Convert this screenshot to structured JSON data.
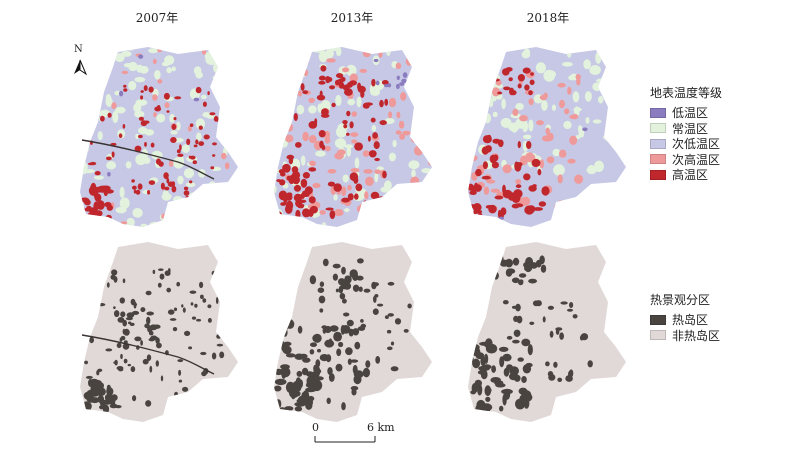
{
  "years": [
    "2007年",
    "2013年",
    "2018年"
  ],
  "north": {
    "label": "N"
  },
  "scale": {
    "start": "0",
    "end": "6 km"
  },
  "legend_temperature": {
    "title": "地表温度等级",
    "items": [
      {
        "label": "低温区",
        "color": "#8b7bbf"
      },
      {
        "label": "常温区",
        "color": "#e3f2dc"
      },
      {
        "label": "次低温区",
        "color": "#c6c8e6"
      },
      {
        "label": "次高温区",
        "color": "#ef9a9a"
      },
      {
        "label": "高温区",
        "color": "#c0272d"
      }
    ]
  },
  "legend_heat": {
    "title": "热景观分区",
    "items": [
      {
        "label": "热岛区",
        "color": "#4a4441"
      },
      {
        "label": "非热岛区",
        "color": "#e0d9d7"
      }
    ]
  }
}
